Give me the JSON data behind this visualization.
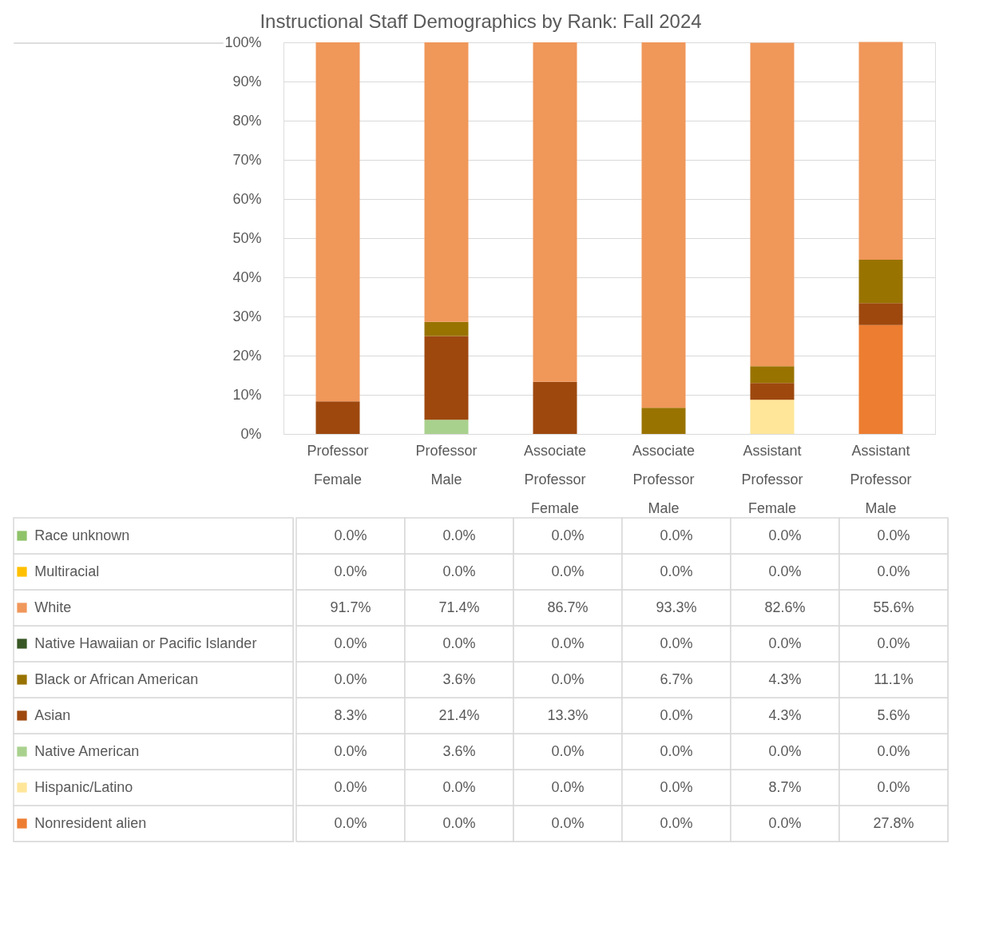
{
  "chart_data": {
    "type": "bar",
    "title": "Instructional Staff Demographics by Rank: Fall 2024",
    "stacked": true,
    "categories": [
      "Professor Female",
      "Professor Male",
      "Associate Professor Female",
      "Associate Professor Male",
      "Assistant Professor Female",
      "Assistant Professor Male"
    ],
    "series": [
      {
        "name": "Nonresident alien",
        "color": "#ed7d31",
        "values": [
          0.0,
          0.0,
          0.0,
          0.0,
          0.0,
          27.8
        ],
        "value_labels": [
          "0.0%",
          "0.0%",
          "0.0%",
          "0.0%",
          "0.0%",
          "27.8%"
        ]
      },
      {
        "name": "Hispanic/Latino",
        "color": "#ffe699",
        "values": [
          0.0,
          0.0,
          0.0,
          0.0,
          8.7,
          0.0
        ],
        "value_labels": [
          "0.0%",
          "0.0%",
          "0.0%",
          "0.0%",
          "8.7%",
          "0.0%"
        ]
      },
      {
        "name": "Native American",
        "color": "#a9d18e",
        "values": [
          0.0,
          3.6,
          0.0,
          0.0,
          0.0,
          0.0
        ],
        "value_labels": [
          "0.0%",
          "3.6%",
          "0.0%",
          "0.0%",
          "0.0%",
          "0.0%"
        ]
      },
      {
        "name": "Asian",
        "color": "#9e480e",
        "values": [
          8.3,
          21.4,
          13.3,
          0.0,
          4.3,
          5.6
        ],
        "value_labels": [
          "8.3%",
          "21.4%",
          "13.3%",
          "0.0%",
          "4.3%",
          "5.6%"
        ]
      },
      {
        "name": "Black or African American",
        "color": "#997300",
        "values": [
          0.0,
          3.6,
          0.0,
          6.7,
          4.3,
          11.1
        ],
        "value_labels": [
          "0.0%",
          "3.6%",
          "0.0%",
          "6.7%",
          "4.3%",
          "11.1%"
        ]
      },
      {
        "name": "Native Hawaiian or Pacific Islander",
        "color": "#375623",
        "values": [
          0.0,
          0.0,
          0.0,
          0.0,
          0.0,
          0.0
        ],
        "value_labels": [
          "0.0%",
          "0.0%",
          "0.0%",
          "0.0%",
          "0.0%",
          "0.0%"
        ]
      },
      {
        "name": "White",
        "color": "#f0975a",
        "values": [
          91.7,
          71.4,
          86.7,
          93.3,
          82.6,
          55.6
        ],
        "value_labels": [
          "91.7%",
          "71.4%",
          "86.7%",
          "93.3%",
          "82.6%",
          "55.6%"
        ]
      },
      {
        "name": "Multiracial",
        "color": "#ffc000",
        "values": [
          0.0,
          0.0,
          0.0,
          0.0,
          0.0,
          0.0
        ],
        "value_labels": [
          "0.0%",
          "0.0%",
          "0.0%",
          "0.0%",
          "0.0%",
          "0.0%"
        ]
      },
      {
        "name": "Race unknown",
        "color": "#8fc36a",
        "values": [
          0.0,
          0.0,
          0.0,
          0.0,
          0.0,
          0.0
        ],
        "value_labels": [
          "0.0%",
          "0.0%",
          "0.0%",
          "0.0%",
          "0.0%",
          "0.0%"
        ]
      }
    ],
    "ylim": [
      0,
      100
    ],
    "yticks": [
      {
        "value": 0,
        "label": "0%"
      },
      {
        "value": 10,
        "label": "10%"
      },
      {
        "value": 20,
        "label": "20%"
      },
      {
        "value": 30,
        "label": "30%"
      },
      {
        "value": 40,
        "label": "40%"
      },
      {
        "value": 50,
        "label": "50%"
      },
      {
        "value": 60,
        "label": "60%"
      },
      {
        "value": 70,
        "label": "70%"
      },
      {
        "value": 80,
        "label": "80%"
      },
      {
        "value": 90,
        "label": "90%"
      },
      {
        "value": 100,
        "label": "100%"
      }
    ],
    "grid": "y",
    "legend": "bottom left"
  }
}
